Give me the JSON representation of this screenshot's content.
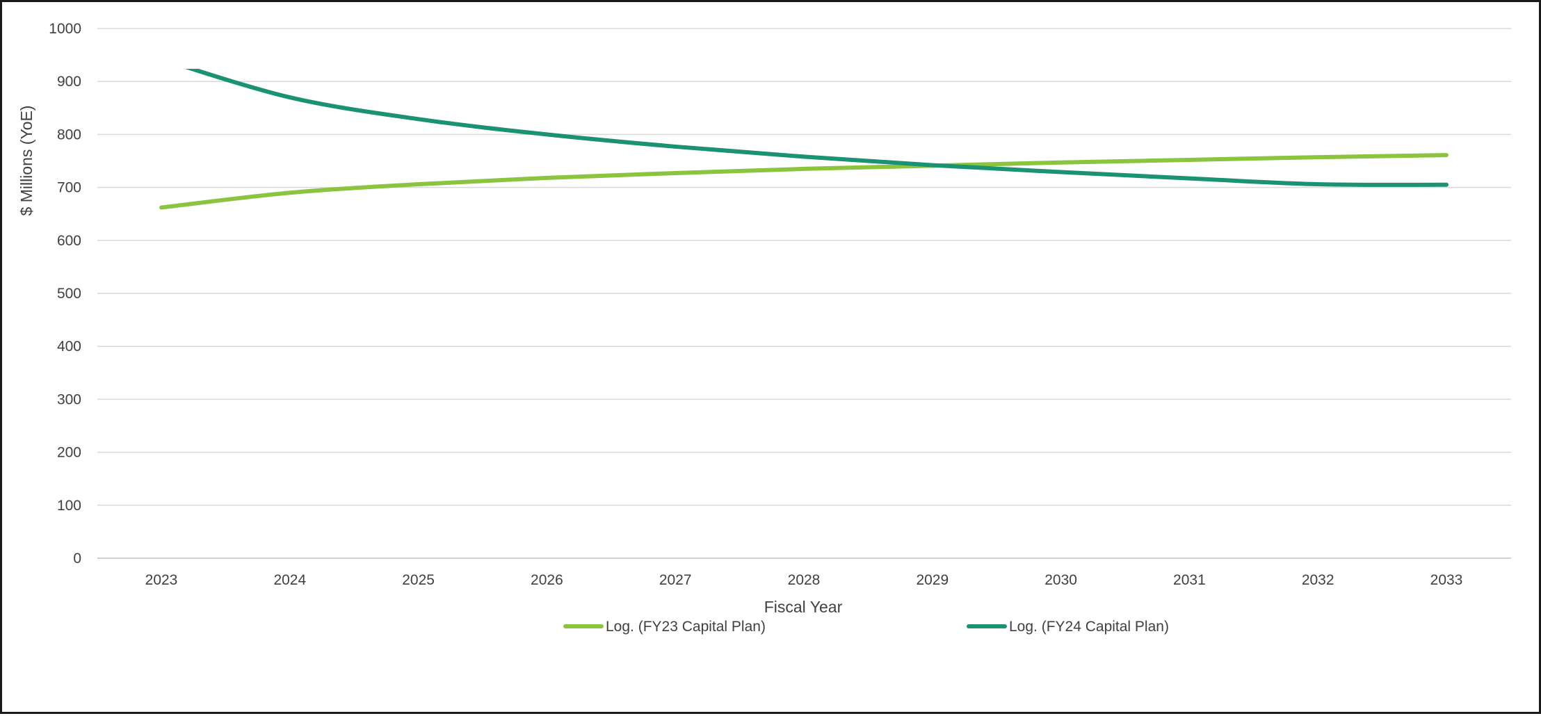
{
  "chart_data": {
    "type": "line",
    "title": "",
    "xlabel": "Fiscal Year",
    "ylabel": "$ Millions (YoE)",
    "categories": [
      "2023",
      "2024",
      "2025",
      "2026",
      "2027",
      "2028",
      "2029",
      "2030",
      "2031",
      "2032",
      "2033"
    ],
    "ylim": [
      0,
      1000
    ],
    "yticks": [
      0,
      100,
      200,
      300,
      400,
      500,
      600,
      700,
      800,
      900,
      1000
    ],
    "grid": true,
    "legend_position": "bottom",
    "series": [
      {
        "name": "Log. (FY23 Capital Plan)",
        "color": "#8CC43F",
        "values": [
          662,
          690,
          706,
          718,
          727,
          735,
          741,
          747,
          752,
          757,
          761
        ]
      },
      {
        "name": "Log. (FY24 Capital Plan)",
        "color": "#1A9273",
        "values": [
          942,
          870,
          829,
          800,
          777,
          758,
          742,
          729,
          717,
          706,
          705
        ]
      }
    ]
  }
}
